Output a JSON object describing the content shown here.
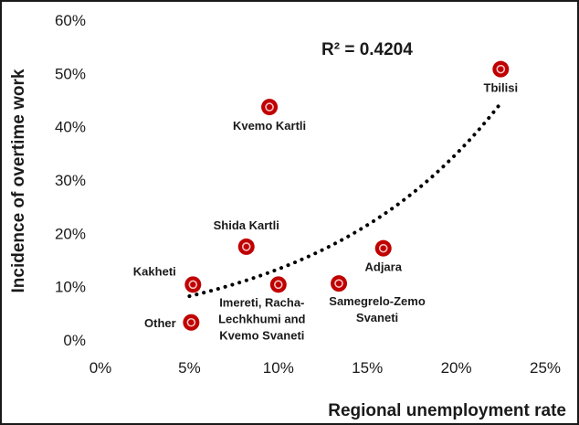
{
  "chart_data": {
    "type": "scatter",
    "xlabel": "Regional unemployment rate",
    "ylabel": "Incidence of overtime work",
    "xlim": [
      0,
      25
    ],
    "ylim": [
      0,
      60
    ],
    "x_ticks": [
      "0%",
      "5%",
      "10%",
      "15%",
      "20%",
      "25%"
    ],
    "y_ticks": [
      "0%",
      "10%",
      "20%",
      "30%",
      "40%",
      "50%",
      "60%"
    ],
    "grid": false,
    "annotation": "R² = 0.4204",
    "trendline": {
      "type": "exponential",
      "style": "dotted",
      "x_start": 5,
      "x_end": 22.5
    },
    "points": [
      {
        "label_lines": [
          "Tbilisi"
        ],
        "x": 22.5,
        "y": 50.8
      },
      {
        "label_lines": [
          "Kvemo Kartli"
        ],
        "x": 9.5,
        "y": 43.7
      },
      {
        "label_lines": [
          "Shida Kartli"
        ],
        "x": 8.2,
        "y": 17.5
      },
      {
        "label_lines": [
          "Adjara"
        ],
        "x": 15.9,
        "y": 17.2
      },
      {
        "label_lines": [
          "Kakheti"
        ],
        "x": 5.2,
        "y": 10.4
      },
      {
        "label_lines": [
          "Imereti, Racha-",
          "Lechkhumi and",
          "Kvemo Svaneti"
        ],
        "x": 10.0,
        "y": 10.4
      },
      {
        "label_lines": [
          "Samegrelo-Zemo",
          "Svaneti"
        ],
        "x": 13.4,
        "y": 10.6
      },
      {
        "label_lines": [
          "Other"
        ],
        "x": 5.1,
        "y": 3.3
      }
    ]
  },
  "colors": {
    "marker_fill": "#c00000",
    "marker_ring": "#f2c4c4",
    "trendline": "#000000",
    "text": "#1a1a1a"
  }
}
